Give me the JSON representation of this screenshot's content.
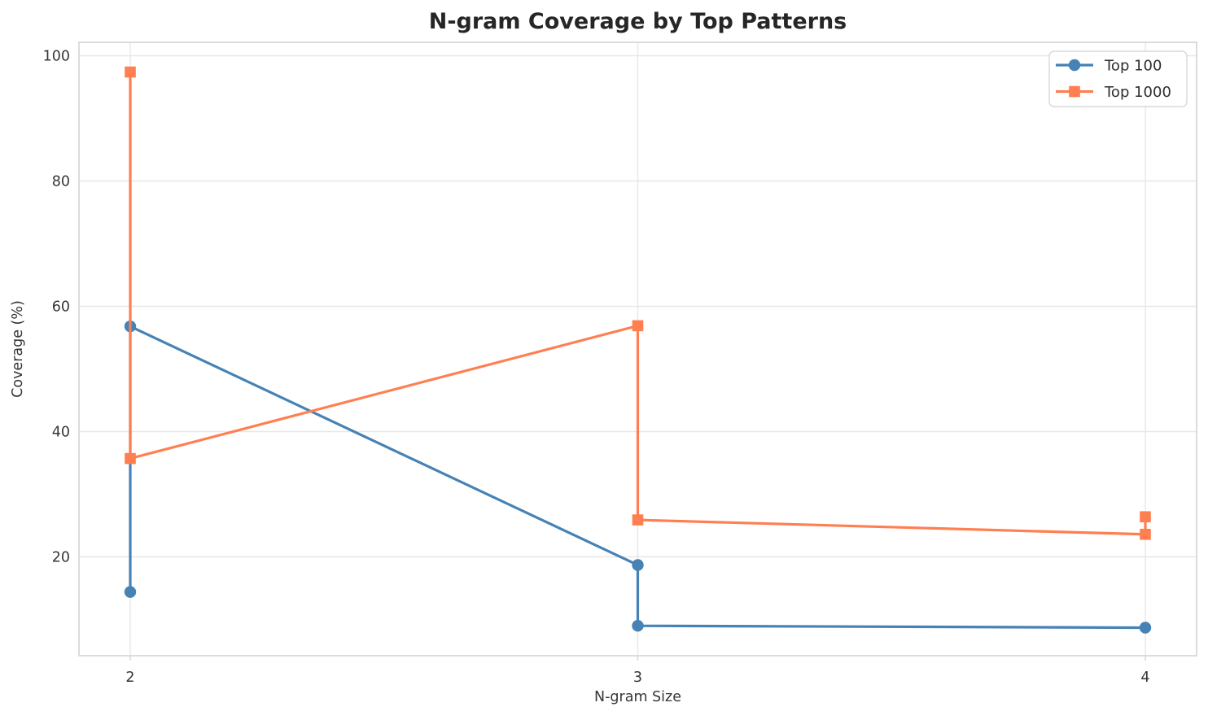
{
  "colors": {
    "background": "#ffffff",
    "grid": "#e7e7e7",
    "spine": "#d4d4d4",
    "title_text": "#262626",
    "tick_text": "#363636",
    "legend_text": "#2e2e2e",
    "legend_border": "#d8d8d8",
    "series_top_100": "#4682B4",
    "series_top_1000": "#FF7F50"
  },
  "chart_data": {
    "type": "line",
    "title": "N-gram Coverage by Top Patterns",
    "xlabel": "N-gram Size",
    "ylabel": "Coverage (%)",
    "x_ticks": [
      2,
      3,
      4
    ],
    "y_ticks": [
      20,
      40,
      60,
      80,
      100
    ],
    "xlim": [
      1.9,
      4.1
    ],
    "ylim": [
      4.2,
      102.1
    ],
    "grid": true,
    "legend_position": "upper right",
    "series": [
      {
        "name": "Top 100",
        "color": "#4682B4",
        "marker": "circle",
        "points": [
          [
            2,
            14.4
          ],
          [
            2,
            56.8
          ],
          [
            3,
            18.7
          ],
          [
            3,
            9.0
          ],
          [
            4,
            8.7
          ]
        ]
      },
      {
        "name": "Top 1000",
        "color": "#FF7F50",
        "marker": "square",
        "points": [
          [
            2,
            97.4
          ],
          [
            2,
            35.7
          ],
          [
            3,
            56.9
          ],
          [
            3,
            25.9
          ],
          [
            4,
            23.6
          ],
          [
            4,
            26.4
          ]
        ]
      }
    ]
  }
}
